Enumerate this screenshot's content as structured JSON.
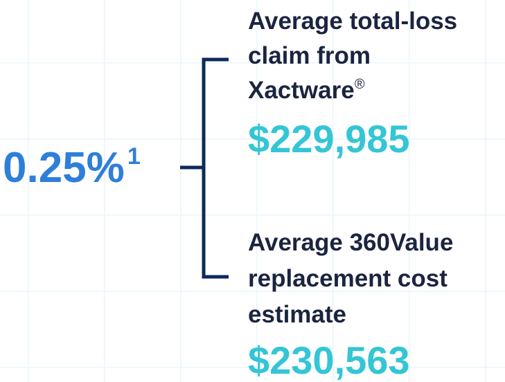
{
  "percentage": "0.25%",
  "footnote": "1",
  "claims": [
    {
      "label_lines": [
        "Average total-loss",
        "claim from",
        "Xactware"
      ],
      "mark": "®",
      "amount": "$229,985"
    },
    {
      "label_lines": [
        "Average 360Value",
        "replacement cost",
        "estimate"
      ],
      "amount": "$230,563"
    }
  ]
}
